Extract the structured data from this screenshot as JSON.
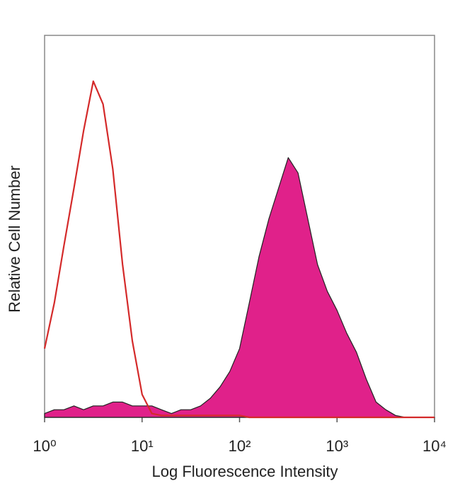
{
  "chart_data": {
    "type": "histogram-overlay",
    "xlabel": "Log Fluorescence Intensity",
    "ylabel": "Relative Cell Number",
    "log_x": true,
    "xlim": [
      1,
      10000
    ],
    "xticks": [
      {
        "value": 1,
        "label": "10⁰"
      },
      {
        "value": 10,
        "label": "10¹"
      },
      {
        "value": 100,
        "label": "10²"
      },
      {
        "value": 1000,
        "label": "10³"
      },
      {
        "value": 10000,
        "label": "10⁴"
      }
    ],
    "ylim": [
      0,
      100
    ],
    "x": [
      1,
      1.26,
      1.58,
      2,
      2.51,
      3.16,
      3.98,
      5.01,
      6.31,
      7.94,
      10,
      12.6,
      15.8,
      20,
      25.1,
      31.6,
      39.8,
      50.1,
      63.1,
      79.4,
      100,
      126,
      158,
      200,
      251,
      316,
      398,
      501,
      631,
      794,
      1000,
      1259,
      1585,
      1995,
      2512,
      3162,
      3981,
      5012,
      6310,
      7943,
      10000
    ],
    "series": [
      {
        "color": "#d42a2a",
        "filled": false,
        "values": [
          18,
          30,
          45,
          60,
          75,
          88,
          82,
          65,
          40,
          20,
          6,
          1,
          0.5,
          0.5,
          0.5,
          0.5,
          0.5,
          0.5,
          0.5,
          0.5,
          0.5,
          0,
          0,
          0,
          0,
          0,
          0,
          0,
          0,
          0,
          0,
          0,
          0,
          0,
          0,
          0,
          0,
          0,
          0,
          0,
          0
        ]
      },
      {
        "color": "#e0218a",
        "filled": true,
        "values": [
          1,
          2,
          2,
          3,
          2,
          3,
          3,
          4,
          4,
          3,
          3,
          3,
          2,
          1,
          2,
          2,
          3,
          5,
          8,
          12,
          18,
          30,
          42,
          52,
          60,
          68,
          64,
          52,
          40,
          33,
          28,
          22,
          17,
          10,
          4,
          2,
          0.5,
          0,
          0,
          0,
          0
        ]
      }
    ]
  }
}
